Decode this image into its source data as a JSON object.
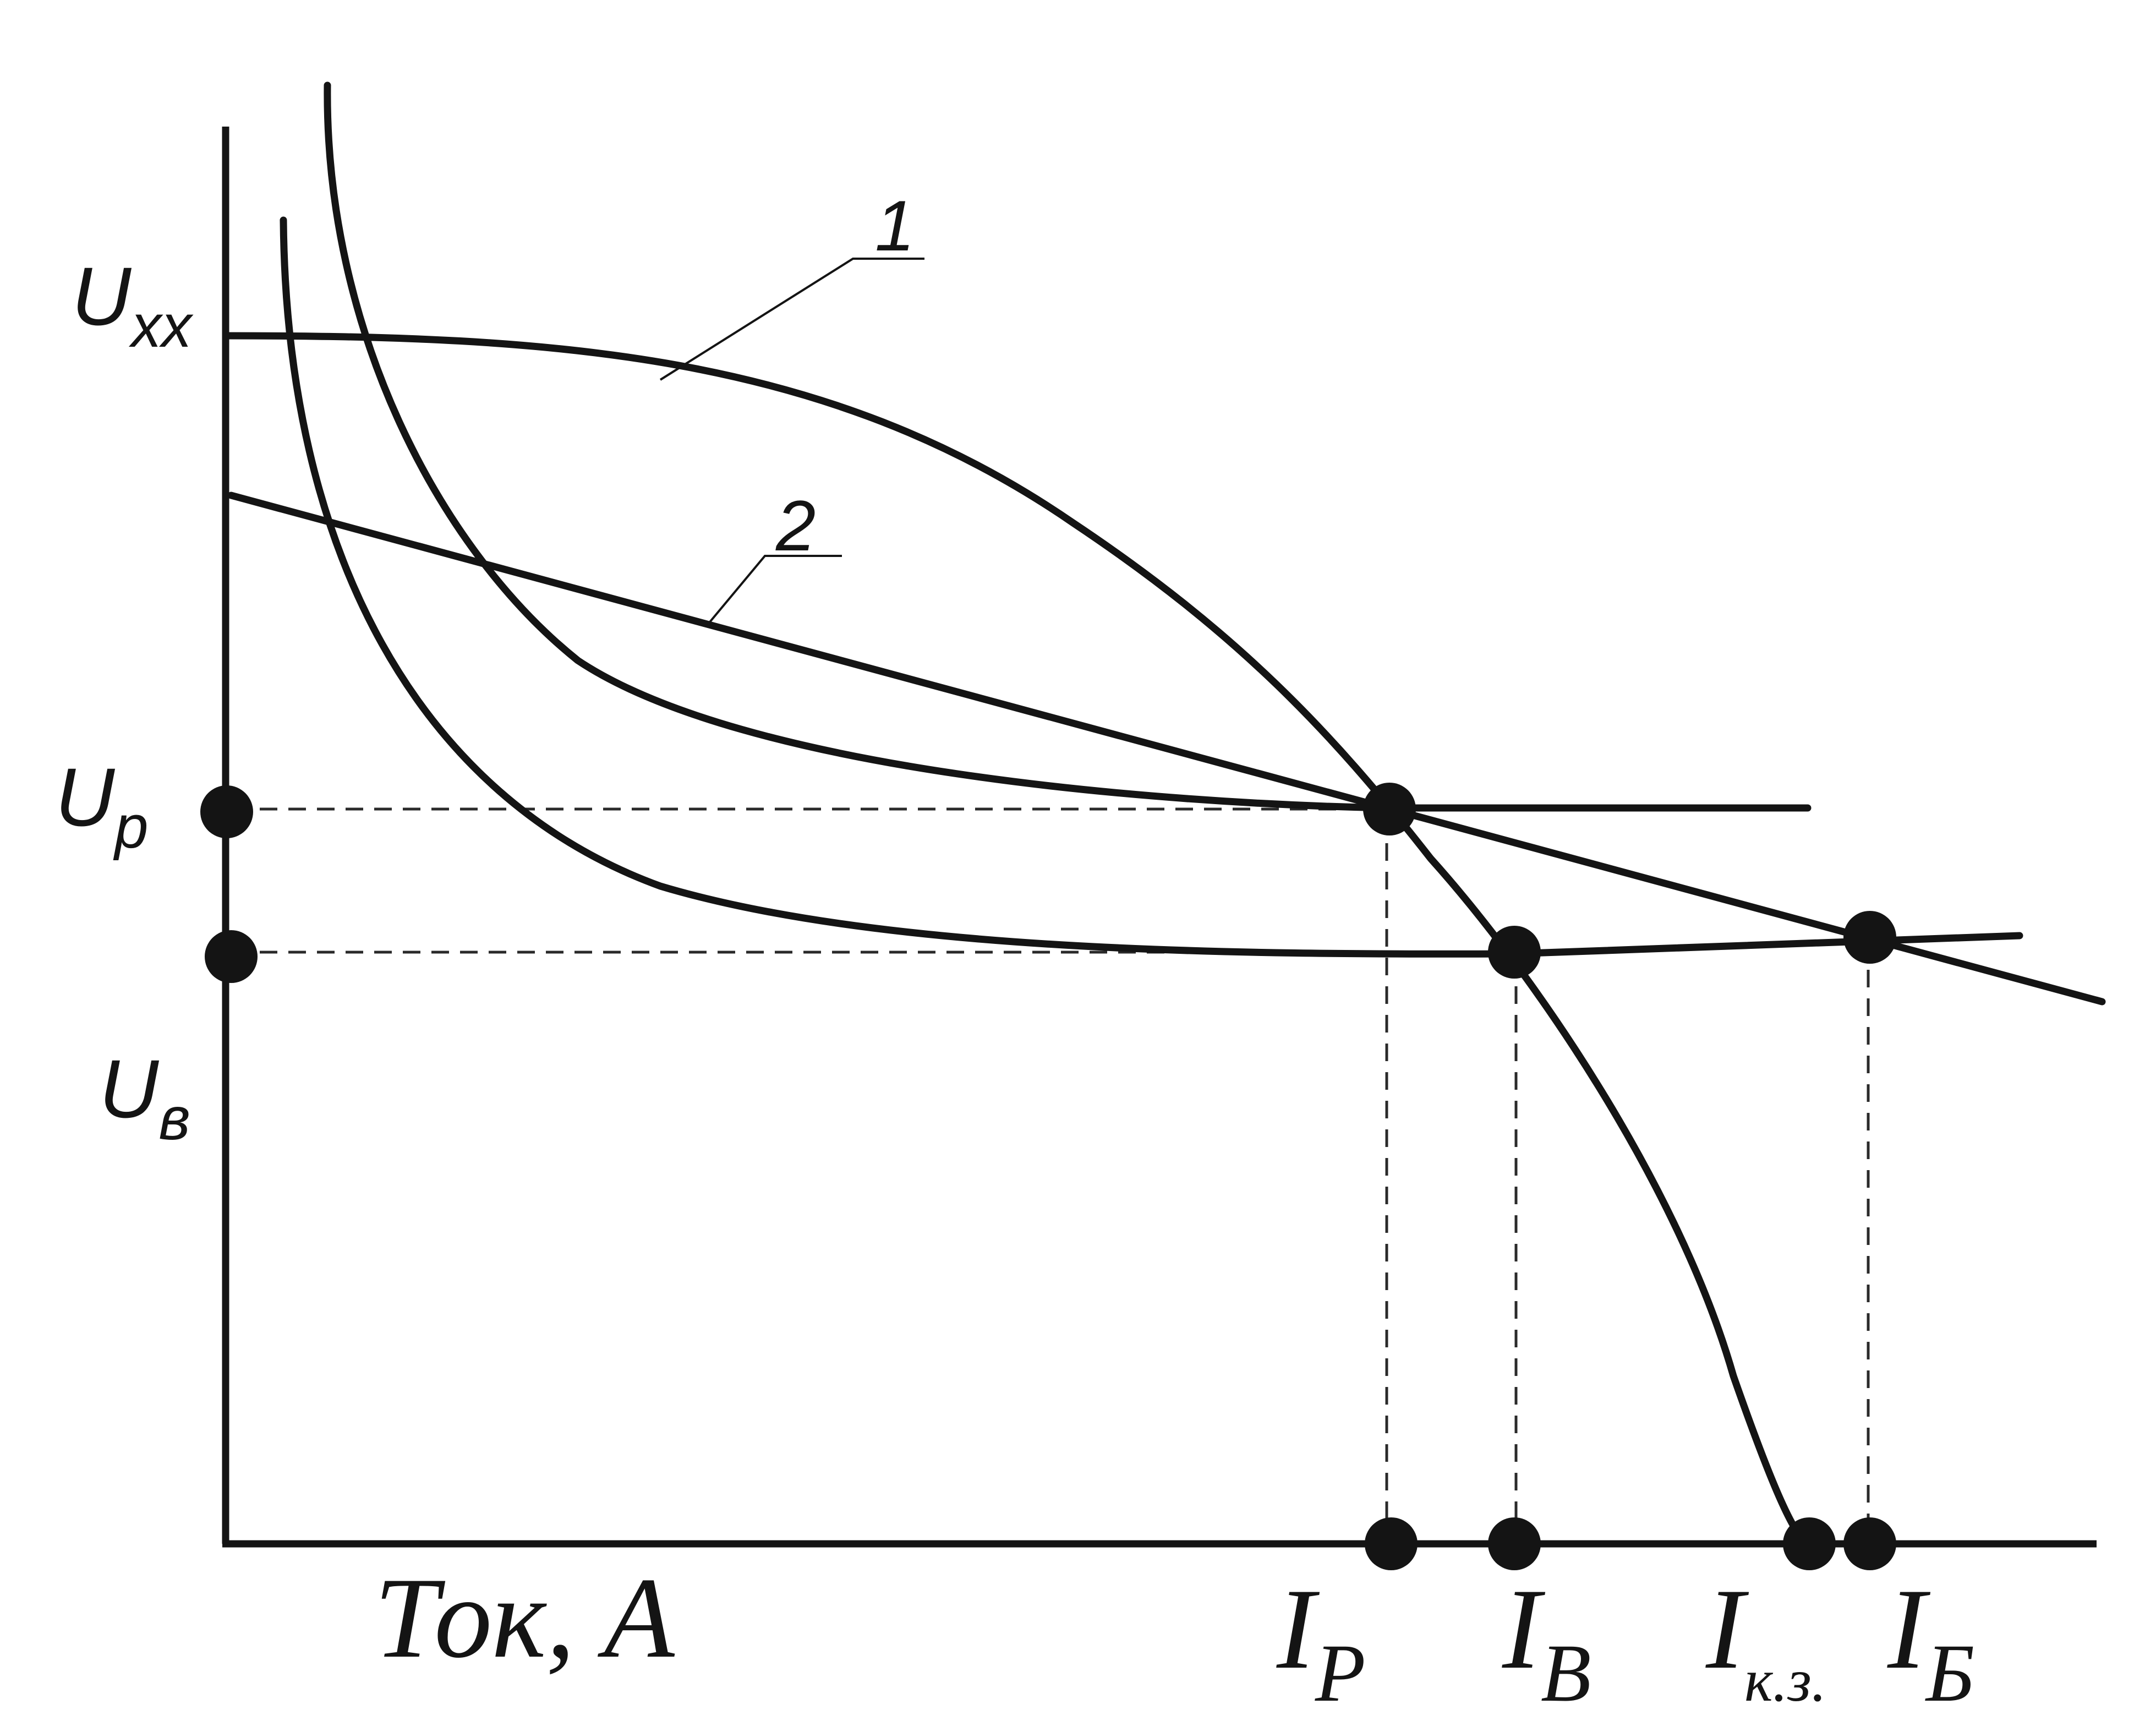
{
  "axes": {
    "x_label": "Ток, А"
  },
  "voltage_labels": {
    "open_circuit": {
      "main": "U",
      "sub": "xx"
    },
    "working": {
      "main": "U",
      "sub": "p"
    },
    "alternate": {
      "main": "U",
      "sub": "в"
    }
  },
  "current_labels": {
    "working": {
      "main": "I",
      "sub": "P"
    },
    "alternate": {
      "main": "I",
      "sub": "B"
    },
    "short_circuit": {
      "main": "I",
      "sub": "к.з."
    },
    "battery": {
      "main": "I",
      "sub": "Б"
    }
  },
  "curve_labels": {
    "curve_1": "1",
    "curve_2": "2"
  },
  "colors": {
    "ink": "#141414",
    "background": "#ffffff"
  }
}
